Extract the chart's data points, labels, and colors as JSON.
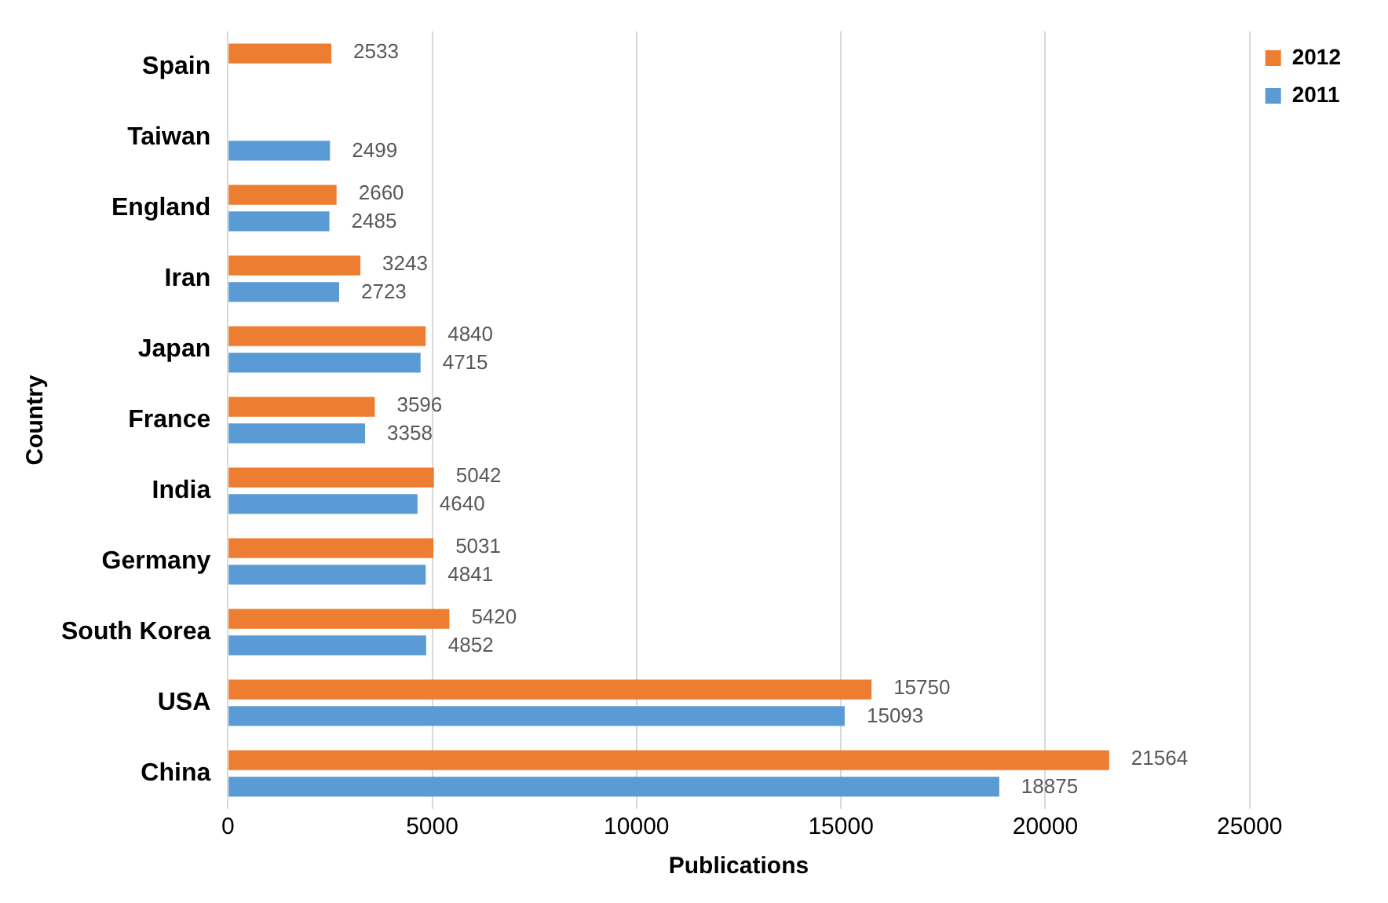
{
  "chart_data": {
    "type": "bar",
    "orientation": "horizontal",
    "xlabel": "Publications",
    "ylabel": "Country",
    "categories": [
      "Spain",
      "Taiwan",
      "England",
      "Iran",
      "Japan",
      "France",
      "India",
      "Germany",
      "South Korea",
      "USA",
      "China"
    ],
    "series": [
      {
        "name": "2012",
        "color": "#ed7d31",
        "values": [
          2533,
          null,
          2660,
          3243,
          4840,
          3596,
          5042,
          5031,
          5420,
          15750,
          21564
        ]
      },
      {
        "name": "2011",
        "color": "#5b9bd5",
        "values": [
          null,
          2499,
          2485,
          2723,
          4715,
          3358,
          4640,
          4841,
          4852,
          15093,
          18875
        ]
      }
    ],
    "xlim": [
      0,
      25000
    ],
    "xticks": [
      0,
      5000,
      10000,
      15000,
      20000,
      25000
    ],
    "grid": "x",
    "legend": "top right",
    "data_labels": true
  }
}
